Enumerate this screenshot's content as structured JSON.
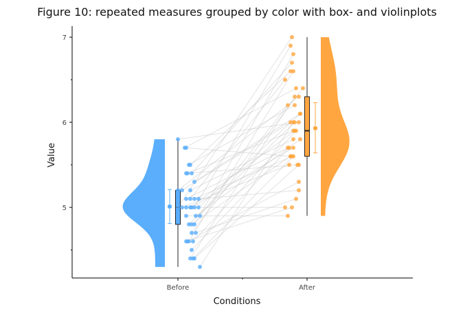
{
  "chart_data": {
    "type": "raincloud",
    "title": "Figure 10: repeated measures grouped by color with box- and violinplots",
    "xlabel": "Conditions",
    "ylabel": "Value",
    "categories": [
      "Before",
      "After"
    ],
    "ylim": [
      4.17,
      7.13
    ],
    "yticks": [
      5,
      6,
      7
    ],
    "colors": {
      "Before": "#5aaefc",
      "After": "#ffa640"
    },
    "groups": [
      {
        "name": "Before",
        "box": {
          "q1": 4.8,
          "median": 5.0,
          "q3": 5.2,
          "whisker_low": 4.3,
          "whisker_high": 5.8
        },
        "mean": 5.01,
        "ci": [
          4.81,
          5.21
        ],
        "violin_range": [
          4.3,
          5.8
        ]
      },
      {
        "name": "After",
        "box": {
          "q1": 5.6,
          "median": 5.9,
          "q3": 6.3,
          "whisker_low": 4.9,
          "whisker_high": 7.0
        },
        "mean": 5.93,
        "ci": [
          5.64,
          6.23
        ],
        "violin_range": [
          4.9,
          7.0
        ]
      }
    ],
    "pairs": [
      [
        5.8,
        6.0
      ],
      [
        5.7,
        6.4
      ],
      [
        5.7,
        5.6
      ],
      [
        5.5,
        6.2
      ],
      [
        5.5,
        6.6
      ],
      [
        5.4,
        5.9
      ],
      [
        5.4,
        6.7
      ],
      [
        5.4,
        5.5
      ],
      [
        5.3,
        6.1
      ],
      [
        5.2,
        6.0
      ],
      [
        5.2,
        5.8
      ],
      [
        5.2,
        6.3
      ],
      [
        5.1,
        5.7
      ],
      [
        5.1,
        5.6
      ],
      [
        5.1,
        6.5
      ],
      [
        5.1,
        5.2
      ],
      [
        5.0,
        6.9
      ],
      [
        5.0,
        5.9
      ],
      [
        5.0,
        5.0
      ],
      [
        5.0,
        6.1
      ],
      [
        5.0,
        5.5
      ],
      [
        5.0,
        7.0
      ],
      [
        5.0,
        5.7
      ],
      [
        4.9,
        6.2
      ],
      [
        4.9,
        5.8
      ],
      [
        4.9,
        4.9
      ],
      [
        4.8,
        6.8
      ],
      [
        4.8,
        5.6
      ],
      [
        4.8,
        6.0
      ],
      [
        4.7,
        5.1
      ],
      [
        4.7,
        6.4
      ],
      [
        4.6,
        5.3
      ],
      [
        4.6,
        5.9
      ],
      [
        4.6,
        6.6
      ],
      [
        4.6,
        5.0
      ],
      [
        4.5,
        5.7
      ],
      [
        4.4,
        5.5
      ],
      [
        4.4,
        6.3
      ],
      [
        4.4,
        5.6
      ],
      [
        4.3,
        6.0
      ]
    ]
  }
}
